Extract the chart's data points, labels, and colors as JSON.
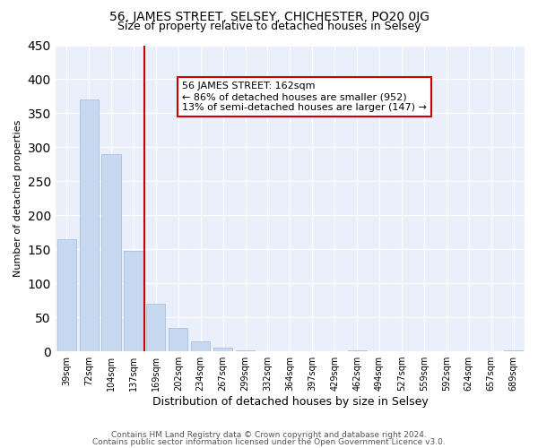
{
  "title1": "56, JAMES STREET, SELSEY, CHICHESTER, PO20 0JG",
  "title2": "Size of property relative to detached houses in Selsey",
  "xlabel": "Distribution of detached houses by size in Selsey",
  "ylabel": "Number of detached properties",
  "bin_labels": [
    "39sqm",
    "72sqm",
    "104sqm",
    "137sqm",
    "169sqm",
    "202sqm",
    "234sqm",
    "267sqm",
    "299sqm",
    "332sqm",
    "364sqm",
    "397sqm",
    "429sqm",
    "462sqm",
    "494sqm",
    "527sqm",
    "559sqm",
    "592sqm",
    "624sqm",
    "657sqm",
    "689sqm"
  ],
  "bar_heights": [
    165,
    370,
    290,
    147,
    70,
    34,
    15,
    6,
    2,
    0,
    0,
    0,
    0,
    1,
    0,
    0,
    0,
    0,
    0,
    0,
    2
  ],
  "bar_color": "#c6d9f0",
  "bar_edge_color": "#a0b8d8",
  "ref_line_color": "#cc0000",
  "annotation_text": "56 JAMES STREET: 162sqm\n← 86% of detached houses are smaller (952)\n13% of semi-detached houses are larger (147) →",
  "annotation_box_edge": "#cc0000",
  "ylim": [
    0,
    450
  ],
  "yticks": [
    0,
    50,
    100,
    150,
    200,
    250,
    300,
    350,
    400,
    450
  ],
  "footer1": "Contains HM Land Registry data © Crown copyright and database right 2024.",
  "footer2": "Contains public sector information licensed under the Open Government Licence v3.0."
}
